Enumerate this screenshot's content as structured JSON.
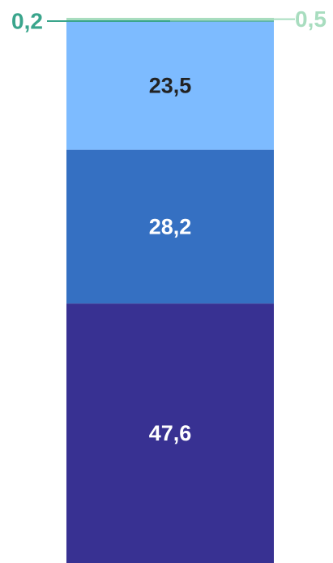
{
  "chart_data": {
    "type": "bar",
    "stacked": true,
    "categories": [
      ""
    ],
    "series": [
      {
        "values": [
          47.6
        ],
        "label": "47,6",
        "color": "#383192",
        "label_color": "#ffffff"
      },
      {
        "values": [
          28.2
        ],
        "label": "28,2",
        "color": "#3570c2",
        "label_color": "#ffffff"
      },
      {
        "values": [
          23.5
        ],
        "label": "23,5",
        "color": "#7dbbff",
        "label_color": "#222222"
      },
      {
        "values": [
          0.2
        ],
        "label": "0,2",
        "color": "#3aa58c",
        "label_color": "#3aa58c"
      },
      {
        "values": [
          0.5
        ],
        "label": "0,5",
        "color": "#a8ddbf",
        "label_color": "#a8ddbf"
      }
    ]
  }
}
